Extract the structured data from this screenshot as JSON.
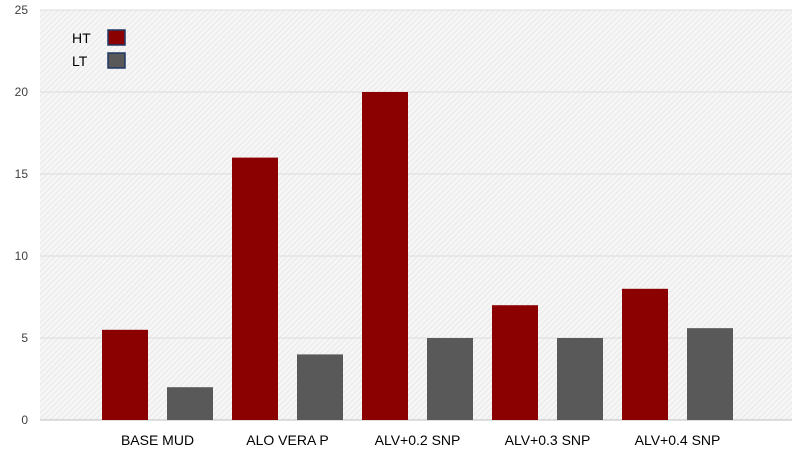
{
  "chart_data": {
    "type": "bar",
    "categories": [
      "BASE MUD",
      "ALO VERA P",
      "ALV+0.2 SNP",
      "ALV+0.3 SNP",
      "ALV+0.4 SNP"
    ],
    "series": [
      {
        "name": "HT",
        "color": "#8b0000",
        "values": [
          5.5,
          16,
          20,
          7,
          8
        ]
      },
      {
        "name": "LT",
        "color": "#595959",
        "values": [
          2,
          4,
          5,
          5,
          5.6
        ]
      }
    ],
    "ylim": [
      0,
      25
    ],
    "yticks": [
      0,
      5,
      10,
      15,
      20,
      25
    ],
    "grid": true,
    "legend_position": "top-left"
  }
}
